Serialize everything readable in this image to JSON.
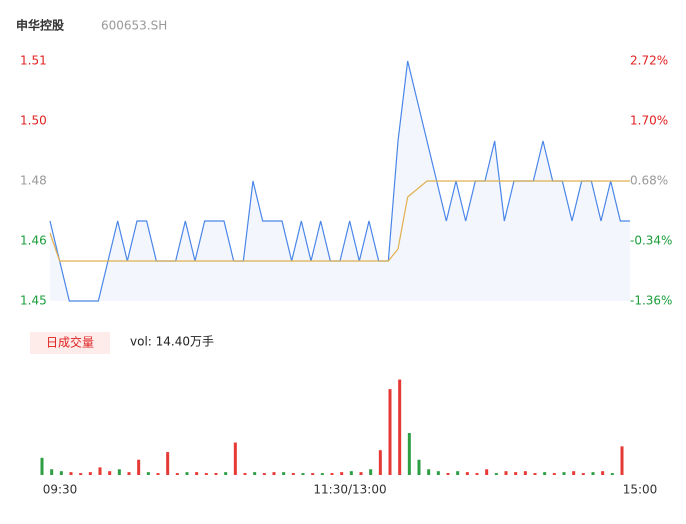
{
  "header": {
    "name": "申华控股",
    "code": "600653.SH"
  },
  "volume_tab": {
    "label": "日成交量",
    "vol_text": "vol: 14.40万手"
  },
  "chart_data": [
    {
      "type": "line",
      "x": [
        0,
        4,
        8,
        12,
        16,
        20,
        24,
        28,
        32,
        36,
        40,
        44,
        48,
        52,
        56,
        60,
        64,
        68,
        72,
        76,
        80,
        84,
        88,
        92,
        96,
        100,
        104,
        108,
        112,
        116,
        120,
        124,
        128,
        132,
        136,
        140,
        144,
        148,
        152,
        156,
        160,
        164,
        168,
        172,
        176,
        180,
        184,
        188,
        192,
        196,
        200,
        204,
        208,
        212,
        216,
        220,
        224,
        228,
        232,
        236,
        240
      ],
      "series": [
        {
          "name": "price",
          "color": "#4a86e8",
          "values": [
            1.47,
            1.46,
            1.45,
            1.45,
            1.45,
            1.45,
            1.46,
            1.47,
            1.46,
            1.47,
            1.47,
            1.46,
            1.46,
            1.46,
            1.47,
            1.46,
            1.47,
            1.47,
            1.47,
            1.46,
            1.46,
            1.48,
            1.47,
            1.47,
            1.47,
            1.46,
            1.47,
            1.46,
            1.47,
            1.46,
            1.46,
            1.47,
            1.46,
            1.47,
            1.46,
            1.46,
            1.49,
            1.51,
            1.5,
            1.49,
            1.48,
            1.47,
            1.48,
            1.47,
            1.48,
            1.48,
            1.49,
            1.47,
            1.48,
            1.48,
            1.48,
            1.49,
            1.48,
            1.48,
            1.47,
            1.48,
            1.48,
            1.47,
            1.48,
            1.47,
            1.47
          ]
        },
        {
          "name": "average",
          "color": "#e0b050",
          "values": [
            1.467,
            1.46,
            1.46,
            1.46,
            1.46,
            1.46,
            1.46,
            1.46,
            1.46,
            1.46,
            1.46,
            1.46,
            1.46,
            1.46,
            1.46,
            1.46,
            1.46,
            1.46,
            1.46,
            1.46,
            1.46,
            1.46,
            1.46,
            1.46,
            1.46,
            1.46,
            1.46,
            1.46,
            1.46,
            1.46,
            1.46,
            1.46,
            1.46,
            1.46,
            1.46,
            1.46,
            1.463,
            1.476,
            1.478,
            1.48,
            1.48,
            1.48,
            1.48,
            1.48,
            1.48,
            1.48,
            1.48,
            1.48,
            1.48,
            1.48,
            1.48,
            1.48,
            1.48,
            1.48,
            1.48,
            1.48,
            1.48,
            1.48,
            1.48,
            1.48,
            1.48
          ]
        }
      ],
      "xlim": [
        0,
        240
      ],
      "ylim": [
        1.45,
        1.51
      ],
      "yticks": [
        {
          "value": 1.51,
          "label": "1.51"
        },
        {
          "value": 1.495,
          "label": "1.50"
        },
        {
          "value": 1.48,
          "label": "1.48"
        },
        {
          "value": 1.465,
          "label": "1.46"
        },
        {
          "value": 1.45,
          "label": "1.45"
        }
      ],
      "y2lim": [
        -1.36,
        2.72
      ],
      "y2ticks": [
        {
          "value": 2.72,
          "label": "2.72%"
        },
        {
          "value": 1.7,
          "label": "1.70%"
        },
        {
          "value": 0.68,
          "label": "0.68%"
        },
        {
          "value": -0.34,
          "label": "-0.34%"
        },
        {
          "value": -1.36,
          "label": "-1.36%"
        }
      ],
      "tick_colors": [
        "#e02020",
        "#e02020",
        "#999999",
        "#1a9e3a",
        "#1a9e3a"
      ]
    },
    {
      "type": "bar",
      "values": [
        180,
        60,
        40,
        30,
        20,
        30,
        80,
        40,
        60,
        30,
        160,
        30,
        20,
        240,
        20,
        30,
        30,
        20,
        20,
        30,
        340,
        20,
        30,
        20,
        30,
        30,
        20,
        20,
        20,
        20,
        20,
        30,
        40,
        30,
        60,
        260,
        900,
        1000,
        440,
        160,
        60,
        40,
        20,
        40,
        30,
        20,
        60,
        20,
        40,
        30,
        40,
        20,
        30,
        20,
        30,
        40,
        20,
        30,
        40,
        20,
        300
      ],
      "ylim": [
        0,
        1100
      ],
      "up_color": "#e53935",
      "down_color": "#2e9e44",
      "xticks": [
        {
          "value": 0,
          "label": "09:30"
        },
        {
          "value": 120,
          "label": "11:30/13:00"
        },
        {
          "value": 240,
          "label": "15:00"
        }
      ]
    }
  ]
}
